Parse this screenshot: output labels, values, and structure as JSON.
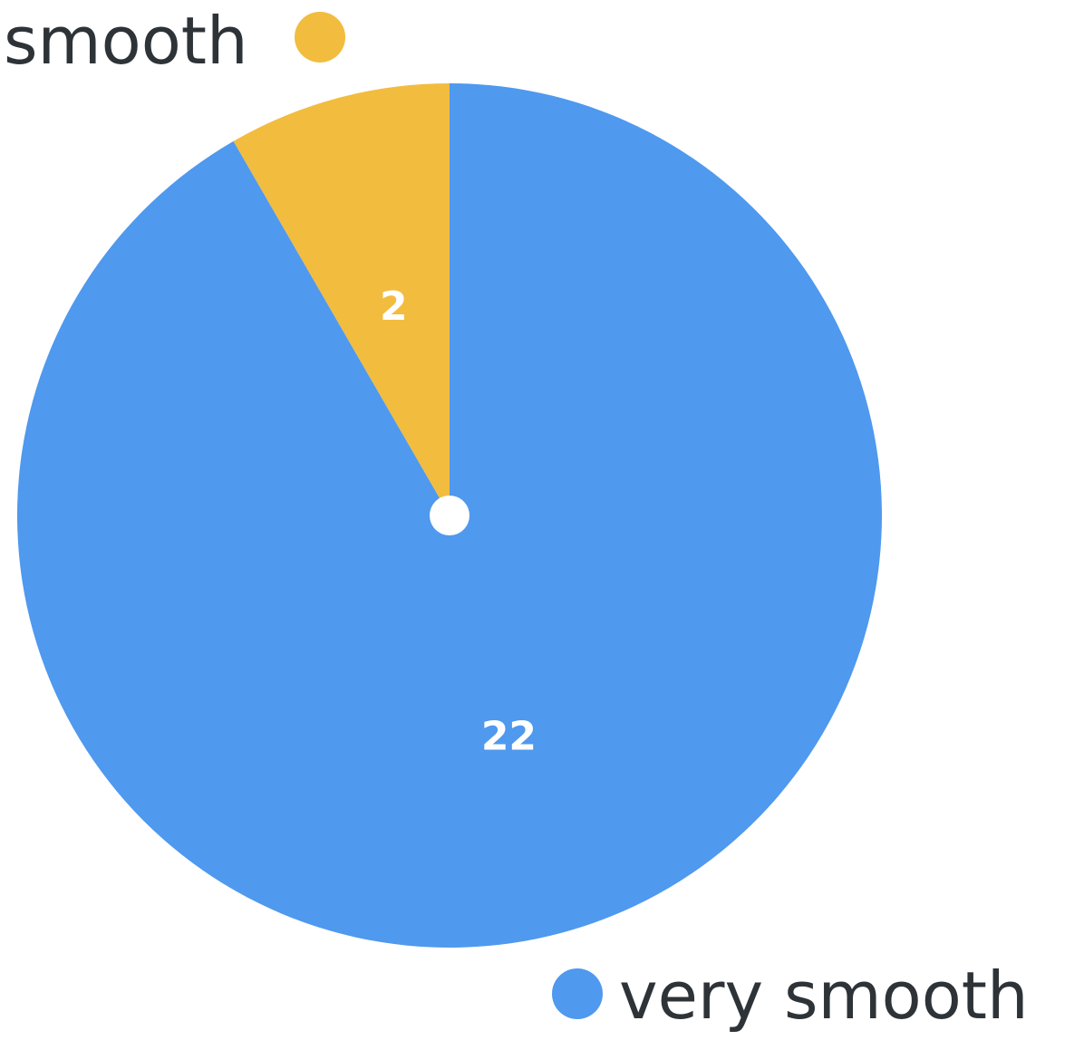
{
  "chart_data": {
    "type": "pie",
    "title": "",
    "slices": [
      {
        "label": "smooth",
        "value": 2,
        "color": "#f2bc3f"
      },
      {
        "label": "very smooth",
        "value": 22,
        "color": "#4f99ee"
      }
    ],
    "legend_placement": "outside labels at slice ends",
    "center_dot": true
  }
}
